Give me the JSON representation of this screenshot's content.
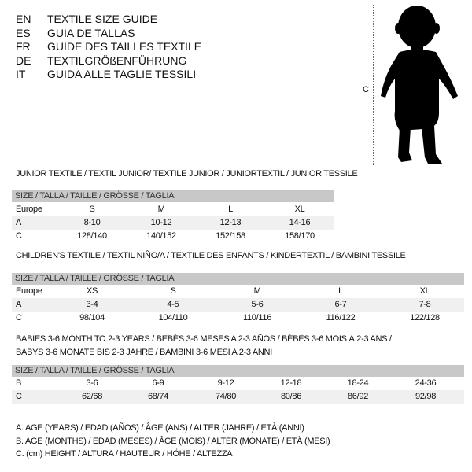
{
  "languages": [
    {
      "code": "EN",
      "title": "TEXTILE SIZE GUIDE"
    },
    {
      "code": "ES",
      "title": "GUÍA DE TALLAS"
    },
    {
      "code": "FR",
      "title": "GUIDE DES TAILLES TEXTILE"
    },
    {
      "code": "DE",
      "title": "TEXTILGRÖßENFÜHRUNG"
    },
    {
      "code": "IT",
      "title": "GUIDA ALLE TAGLIE TESSILI"
    }
  ],
  "figure": {
    "label": "C",
    "icon": "child-silhouette-icon"
  },
  "size_header": "SIZE / TALLA / TAILLE / GRÖSSE / TAGLIA",
  "junior": {
    "title": "JUNIOR TEXTILE / TEXTIL JUNIOR/ TEXTILE JUNIOR / JUNIORTEXTIL / JUNIOR TESSILE",
    "rows": [
      [
        "Europe",
        "S",
        "M",
        "L",
        "XL"
      ],
      [
        "A",
        "8-10",
        "10-12",
        "12-13",
        "14-16"
      ],
      [
        "C",
        "128/140",
        "140/152",
        "152/158",
        "158/170"
      ]
    ]
  },
  "children": {
    "title": "CHILDREN'S TEXTILE / TEXTIL NIÑO/A / TEXTILE DES ENFANTS / KINDERTEXTIL / BAMBINI TESSILE",
    "rows": [
      [
        "Europe",
        "XS",
        "S",
        "M",
        "L",
        "XL"
      ],
      [
        "A",
        "3-4",
        "4-5",
        "5-6",
        "6-7",
        "7-8"
      ],
      [
        "C",
        "98/104",
        "104/110",
        "110/116",
        "116/122",
        "122/128"
      ]
    ]
  },
  "babies": {
    "title1": "BABIES 3-6 MONTH TO 2-3 YEARS / BEBÉS 3-6 MESES A 2-3 AÑOS / BÉBÉS 3-6 MOIS À 2-3 ANS /",
    "title2": "BABYS 3-6 MONATE BIS 2-3 JAHRE / BAMBINI 3-6 MESI A 2-3 ANNI",
    "rows": [
      [
        "B",
        "3-6",
        "6-9",
        "9-12",
        "12-18",
        "18-24",
        "24-36"
      ],
      [
        "C",
        "62/68",
        "68/74",
        "74/80",
        "80/86",
        "86/92",
        "92/98"
      ]
    ]
  },
  "legend": [
    "A. AGE (YEARS) / EDAD (AÑOS) / ÂGE (ANS) / ALTER (JAHRE) / ETÀ (ANNI)",
    "B. AGE (MONTHS) / EDAD (MESES) / ÂGE (MOIS) / ALTER (MONATE) / ETÀ (MESI)",
    "C. (cm) HEIGHT / ALTURA / HAUTEUR / HÖHE / ALTEZZA"
  ]
}
